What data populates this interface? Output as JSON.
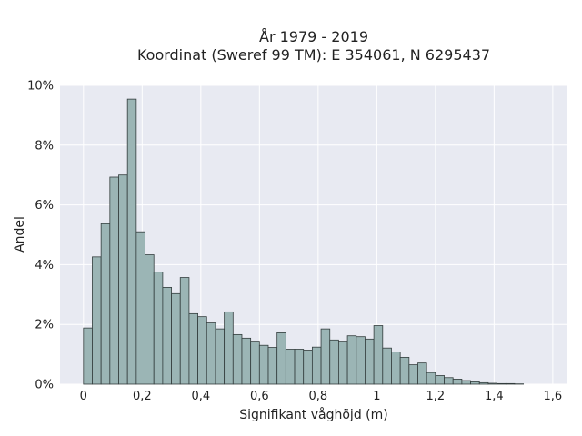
{
  "title": {
    "line1": "År 1979 - 2019",
    "line2": "Koordinat (Sweref 99 TM): E 354061, N 6295437"
  },
  "chart_data": {
    "type": "bar",
    "subtype": "histogram",
    "xlabel": "Signifikant våghöjd (m)",
    "ylabel": "Andel",
    "xlim": [
      -0.08,
      1.65
    ],
    "ylim": [
      0,
      10
    ],
    "grid": true,
    "bin_width": 0.03,
    "bin_start": 0.0,
    "values": [
      1.88,
      4.26,
      5.37,
      6.93,
      7.0,
      9.54,
      5.1,
      4.33,
      3.75,
      3.24,
      3.03,
      3.57,
      2.36,
      2.26,
      2.05,
      1.85,
      2.42,
      1.66,
      1.54,
      1.44,
      1.3,
      1.23,
      1.72,
      1.17,
      1.17,
      1.14,
      1.24,
      1.85,
      1.48,
      1.44,
      1.62,
      1.59,
      1.51,
      1.96,
      1.21,
      1.08,
      0.9,
      0.65,
      0.71,
      0.39,
      0.29,
      0.22,
      0.17,
      0.12,
      0.08,
      0.05,
      0.03,
      0.02,
      0.02,
      0.01
    ],
    "x_ticks": [
      0,
      0.2,
      0.4,
      0.6,
      0.8,
      1.0,
      1.2,
      1.4,
      1.6
    ],
    "x_tick_labels": [
      "0",
      "0,2",
      "0,4",
      "0,6",
      "0,8",
      "1",
      "1,2",
      "1,4",
      "1,6"
    ],
    "y_ticks": [
      0,
      2,
      4,
      6,
      8,
      10
    ],
    "y_tick_labels": [
      "0%",
      "2%",
      "4%",
      "6%",
      "8%",
      "10%"
    ],
    "colors": {
      "bar_fill": "#9bb5b5",
      "bar_stroke": "#333d3d",
      "plot_background": "#e8eaf2",
      "grid": "#ffffff"
    }
  }
}
